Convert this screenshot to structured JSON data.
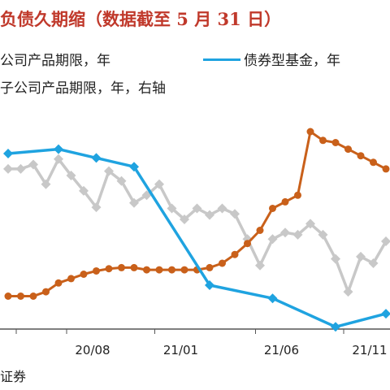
{
  "title": "负债久期缩（数据截至 5 月 31 日）",
  "source": "证券",
  "chart_data": {
    "type": "line",
    "x_ticks": [
      "20/08",
      "21/01",
      "21/06",
      "21/11"
    ],
    "legend": [
      {
        "label": "公司产品期限，年",
        "color": "#c8c8c8"
      },
      {
        "label": "债券型基金，年",
        "color": "#1fa3e0"
      },
      {
        "label": "子公司产品期限，年，右轴",
        "color": "#c9601a"
      }
    ],
    "series": [
      {
        "name": "公司产品期限，年",
        "color": "#c8c8c8",
        "marker": "diamond",
        "values": [
          2.3,
          2.3,
          2.5,
          1.6,
          2.75,
          2.0,
          1.3,
          0.55,
          2.2,
          1.75,
          0.75,
          1.1,
          1.6,
          0.5,
          0.0,
          0.5,
          0.2,
          0.5,
          0.25,
          -0.9,
          -2.1,
          -0.9,
          -0.6,
          -0.7,
          -0.2,
          -0.7,
          -1.8,
          -3.3,
          -1.7,
          -2.0,
          -1.0
        ]
      },
      {
        "name": "债券型基金，年",
        "color": "#1fa3e0",
        "marker": "diamond",
        "values": [
          3.0,
          null,
          null,
          null,
          3.2,
          null,
          null,
          2.8,
          null,
          null,
          2.4,
          null,
          null,
          null,
          null,
          null,
          -3.0,
          null,
          null,
          null,
          null,
          -3.6,
          null,
          null,
          null,
          null,
          -4.9,
          null,
          null,
          null,
          -4.3
        ]
      },
      {
        "name": "子公司产品期限，年，右轴",
        "color": "#c9601a",
        "marker": "circle",
        "values": [
          -3.5,
          -3.5,
          -3.5,
          -3.3,
          -2.9,
          -2.7,
          -2.5,
          -2.35,
          -2.25,
          -2.2,
          -2.2,
          -2.3,
          -2.3,
          -2.3,
          -2.3,
          -2.3,
          -2.2,
          -2.0,
          -1.6,
          -1.1,
          -0.5,
          0.5,
          0.8,
          1.1,
          4.0,
          3.6,
          3.5,
          3.2,
          2.9,
          2.6,
          2.3
        ]
      }
    ]
  }
}
